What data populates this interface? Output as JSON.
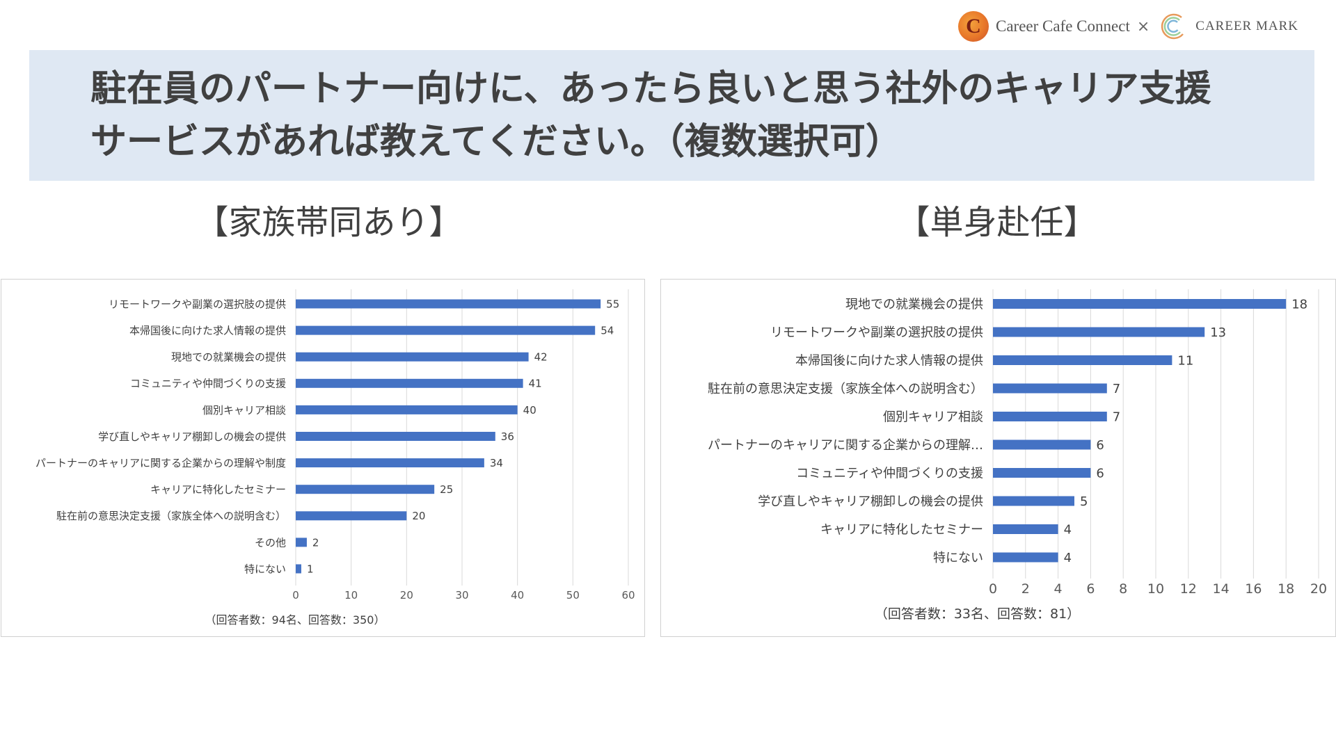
{
  "brand": {
    "left_logo_letter": "C",
    "left_name": "Career Cafe Connect",
    "separator": "×",
    "right_name": "CAREER MARK"
  },
  "title": {
    "line1": "駐在員のパートナー向けに、あったら良いと思う社外のキャリア支援",
    "line2": "サービスがあれば教えてください。（複数選択可）"
  },
  "colors": {
    "bar": "#4472c4",
    "banner": "#dfe8f3",
    "grid": "#d9d9d9"
  },
  "chart_data": [
    {
      "type": "bar",
      "orientation": "horizontal",
      "heading": "【家族帯同あり】",
      "categories": [
        "リモートワークや副業の選択肢の提供",
        "本帰国後に向けた求人情報の提供",
        "現地での就業機会の提供",
        "コミュニティや仲間づくりの支援",
        "個別キャリア相談",
        "学び直しやキャリア棚卸しの機会の提供",
        "パートナーのキャリアに関する企業からの理解や制度",
        "キャリアに特化したセミナー",
        "駐在前の意思決定支援（家族全体への説明含む）",
        "その他",
        "特にない"
      ],
      "values": [
        55,
        54,
        42,
        41,
        40,
        36,
        34,
        25,
        20,
        2,
        1
      ],
      "xlim": [
        0,
        60
      ],
      "xticks": [
        0,
        10,
        20,
        30,
        40,
        50,
        60
      ],
      "grid": true,
      "note": "（回答者数：94名、回答数：350）"
    },
    {
      "type": "bar",
      "orientation": "horizontal",
      "heading": "【単身赴任】",
      "categories": [
        "現地での就業機会の提供",
        "リモートワークや副業の選択肢の提供",
        "本帰国後に向けた求人情報の提供",
        "駐在前の意思決定支援（家族全体への説明含む）",
        "個別キャリア相談",
        "パートナーのキャリアに関する企業からの理解…",
        "コミュニティや仲間づくりの支援",
        "学び直しやキャリア棚卸しの機会の提供",
        "キャリアに特化したセミナー",
        "特にない"
      ],
      "values": [
        18,
        13,
        11,
        7,
        7,
        6,
        6,
        5,
        4,
        4
      ],
      "xlim": [
        0,
        20
      ],
      "xticks": [
        0,
        2,
        4,
        6,
        8,
        10,
        12,
        14,
        16,
        18,
        20
      ],
      "grid": true,
      "note": "（回答者数：33名、回答数：81）"
    }
  ]
}
